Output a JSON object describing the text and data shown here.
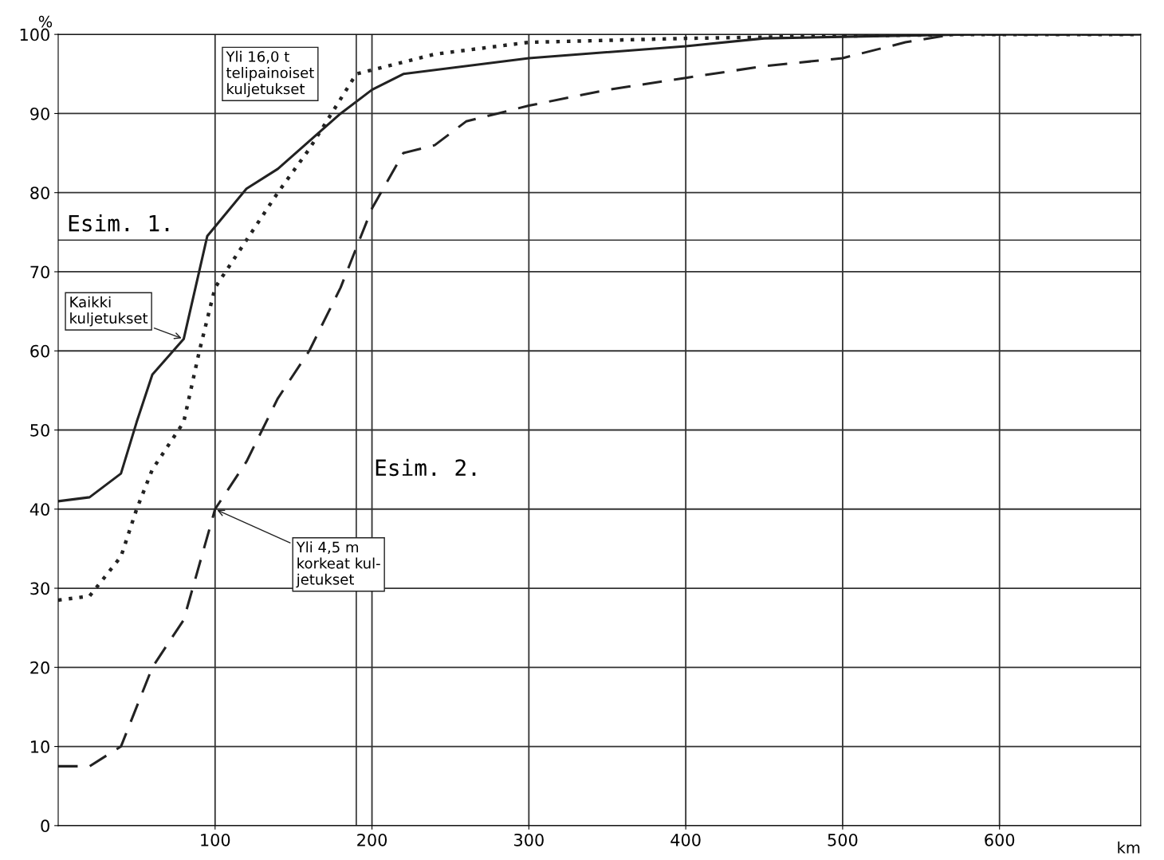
{
  "chart_data": {
    "type": "line",
    "ylabel": "%",
    "xlabel": "km",
    "xlim": [
      0,
      690
    ],
    "xticks": [
      100,
      200,
      300,
      400,
      500,
      600
    ],
    "ylim": [
      0,
      100
    ],
    "yticks": [
      0,
      10,
      20,
      30,
      40,
      50,
      60,
      70,
      80,
      90,
      100
    ],
    "grid": true,
    "marker": "none",
    "series": [
      {
        "line_style": "solid",
        "color": "#222222",
        "x": [
          0,
          20,
          40,
          50,
          60,
          80,
          95,
          120,
          140,
          160,
          180,
          200,
          220,
          300,
          400,
          450,
          500,
          580,
          690
        ],
        "values": [
          41,
          41.5,
          44.5,
          51,
          57,
          61.5,
          74.5,
          80.5,
          83,
          86.5,
          90,
          93,
          95,
          97,
          98.5,
          99.5,
          99.7,
          100,
          100
        ]
      },
      {
        "line_style": "dotted",
        "color": "#222222",
        "x": [
          0,
          20,
          40,
          50,
          60,
          80,
          90,
          100,
          120,
          140,
          160,
          190,
          240,
          300,
          400,
          500,
          580,
          690
        ],
        "values": [
          28.5,
          29,
          34,
          40,
          45,
          51,
          60,
          68,
          74,
          80,
          85.5,
          95,
          97.5,
          99,
          99.5,
          99.8,
          100,
          100
        ]
      },
      {
        "line_style": "dashed",
        "color": "#222222",
        "x": [
          0,
          20,
          40,
          60,
          80,
          100,
          120,
          140,
          160,
          180,
          200,
          220,
          240,
          260,
          280,
          300,
          350,
          400,
          450,
          500,
          540,
          570,
          690
        ],
        "values": [
          7.5,
          7.5,
          10,
          20,
          26,
          40,
          46,
          54,
          60,
          68,
          78,
          85,
          86,
          89,
          90,
          91,
          93,
          94.5,
          96,
          97,
          99,
          100,
          100
        ]
      }
    ],
    "ref_lines": [
      {
        "axis": "y",
        "value": 74,
        "label": "Esim. 1."
      },
      {
        "axis": "x",
        "value": 190,
        "label": "Esim. 2."
      }
    ],
    "annotations": [
      {
        "text": "Kaikki\nkuljetukset",
        "x": 80,
        "y": 61.5
      },
      "Yli 16,0 t\ntelipainoiset\nkuljetukset",
      {
        "text": "Yli 4,5 m\nkorkeat kul-\njetukset",
        "x": 100,
        "y": 40
      }
    ]
  }
}
